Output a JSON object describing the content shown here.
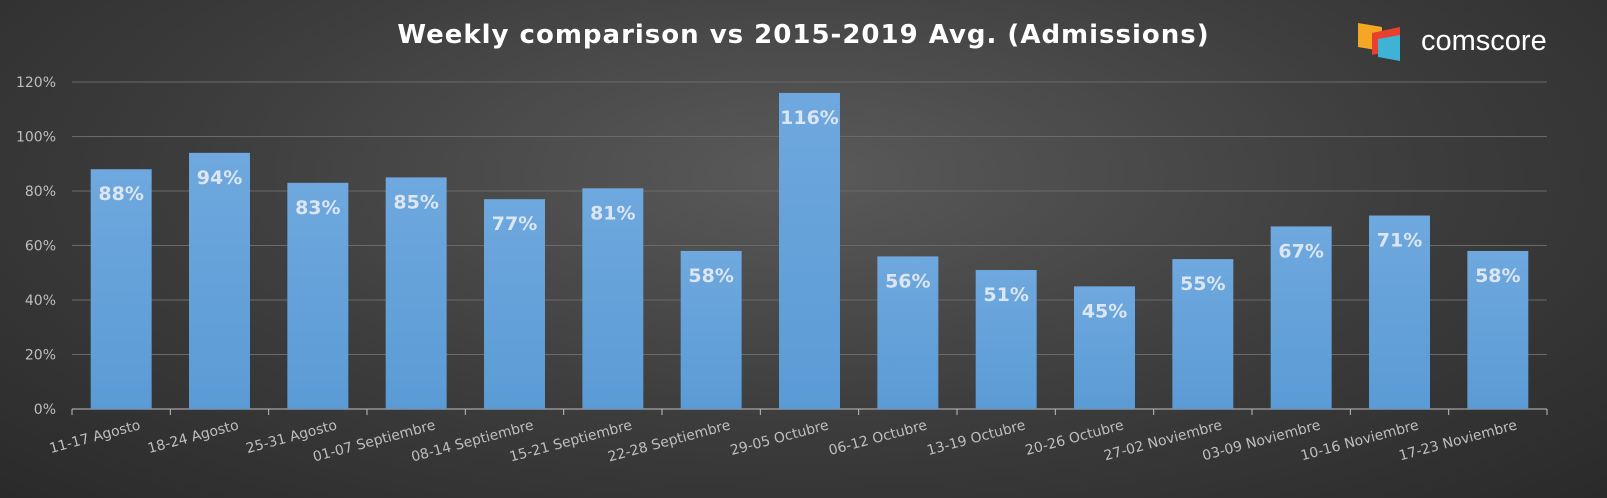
{
  "brand": {
    "name": "comscore"
  },
  "colors": {
    "bar": "#5b9bd5",
    "bar_light": "#6ea8de",
    "label": "#dce6f2",
    "axis": "#bfbfbf",
    "grid": "#6a6a6a",
    "logo_orange": "#f5a623",
    "logo_red": "#e8402c",
    "logo_cyan": "#3fb3d6"
  },
  "chart_data": {
    "type": "bar",
    "title": "Weekly comparison vs 2015-2019 Avg. (Admissions)",
    "categories": [
      "11-17 Agosto",
      "18-24 Agosto",
      "25-31 Agosto",
      "01-07 Septiembre",
      "08-14 Septiembre",
      "15-21 Septiembre",
      "22-28 Septiembre",
      "29-05 Octubre",
      "06-12 Octubre",
      "13-19 Octubre",
      "20-26 Octubre",
      "27-02 Noviembre",
      "03-09 Noviembre",
      "10-16 Noviembre",
      "17-23 Noviembre"
    ],
    "values": [
      88,
      94,
      83,
      85,
      77,
      81,
      58,
      116,
      56,
      51,
      45,
      55,
      67,
      71,
      58
    ],
    "value_labels": [
      "88%",
      "94%",
      "83%",
      "85%",
      "77%",
      "81%",
      "58%",
      "116%",
      "56%",
      "51%",
      "45%",
      "55%",
      "67%",
      "71%",
      "58%"
    ],
    "yticks": [
      "0%",
      "20%",
      "40%",
      "60%",
      "80%",
      "100%",
      "120%"
    ],
    "ylim": [
      0,
      120
    ],
    "grid": true,
    "legend": "none"
  }
}
